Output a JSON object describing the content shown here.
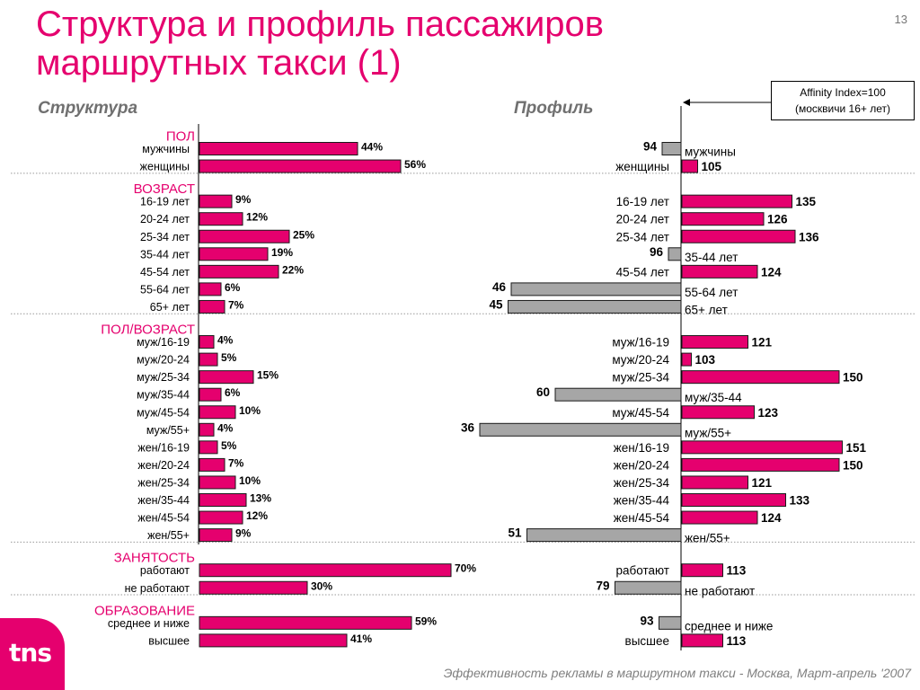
{
  "slide": {
    "title_line1": "Структура  и профиль пассажиров",
    "title_line2": "маршрутных такси (1)",
    "page_number": "13",
    "structure_heading": "Структура",
    "profile_heading": "Профиль",
    "affinity_line1": "Affinity Index=100",
    "affinity_line2": "(москвичи 16+ лет)",
    "footer": "Эффективность рекламы в маршрутном такси - Москва, Март-апрель '2007",
    "logo_text": "tns"
  },
  "colors": {
    "accent": "#e5006e",
    "bar_positive": "#e5006e",
    "bar_negative": "#a6a6a6",
    "title": "#e5006e",
    "muted": "#707070"
  },
  "chart_data": [
    {
      "type": "bar",
      "orientation": "horizontal",
      "name": "Структура",
      "unit": "%",
      "groups": [
        {
          "label": "ПОЛ",
          "items": [
            {
              "label": "мужчины",
              "value": 44
            },
            {
              "label": "женщины",
              "value": 56
            }
          ]
        },
        {
          "label": "ВОЗРАСТ",
          "items": [
            {
              "label": "16-19 лет",
              "value": 9
            },
            {
              "label": "20-24 лет",
              "value": 12
            },
            {
              "label": "25-34 лет",
              "value": 25
            },
            {
              "label": "35-44 лет",
              "value": 19
            },
            {
              "label": "45-54 лет",
              "value": 22
            },
            {
              "label": "55-64 лет",
              "value": 6
            },
            {
              "label": "65+ лет",
              "value": 7
            }
          ]
        },
        {
          "label": "ПОЛ/ВОЗРАСТ",
          "items": [
            {
              "label": "муж/16-19",
              "value": 4
            },
            {
              "label": "муж/20-24",
              "value": 5
            },
            {
              "label": "муж/25-34",
              "value": 15
            },
            {
              "label": "муж/35-44",
              "value": 6
            },
            {
              "label": "муж/45-54",
              "value": 10
            },
            {
              "label": "муж/55+",
              "value": 4
            },
            {
              "label": "жен/16-19",
              "value": 5
            },
            {
              "label": "жен/20-24",
              "value": 7
            },
            {
              "label": "жен/25-34",
              "value": 10
            },
            {
              "label": "жен/35-44",
              "value": 13
            },
            {
              "label": "жен/45-54",
              "value": 12
            },
            {
              "label": "жен/55+",
              "value": 9
            }
          ]
        },
        {
          "label": "ЗАНЯТОСТЬ",
          "items": [
            {
              "label": "работают",
              "value": 70
            },
            {
              "label": "не работают",
              "value": 30
            }
          ]
        },
        {
          "label": "ОБРАЗОВАНИЕ",
          "items": [
            {
              "label": "среднее и ниже",
              "value": 59
            },
            {
              "label": "высшее",
              "value": 41
            }
          ]
        }
      ]
    },
    {
      "type": "bar",
      "orientation": "horizontal-diverging",
      "name": "Профиль",
      "baseline": 100,
      "groups": [
        {
          "items": [
            {
              "label": "мужчины",
              "value": 94
            },
            {
              "label": "женщины",
              "value": 105
            }
          ]
        },
        {
          "items": [
            {
              "label": "16-19 лет",
              "value": 135
            },
            {
              "label": "20-24 лет",
              "value": 126
            },
            {
              "label": "25-34 лет",
              "value": 136
            },
            {
              "label": "35-44 лет",
              "value": 96
            },
            {
              "label": "45-54 лет",
              "value": 124
            },
            {
              "label": "55-64 лет",
              "value": 46
            },
            {
              "label": "65+ лет",
              "value": 45
            }
          ]
        },
        {
          "items": [
            {
              "label": "муж/16-19",
              "value": 121
            },
            {
              "label": "муж/20-24",
              "value": 103
            },
            {
              "label": "муж/25-34",
              "value": 150
            },
            {
              "label": "муж/35-44",
              "value": 60
            },
            {
              "label": "муж/45-54",
              "value": 123
            },
            {
              "label": "муж/55+",
              "value": 36
            },
            {
              "label": "жен/16-19",
              "value": 151
            },
            {
              "label": "жен/20-24",
              "value": 150
            },
            {
              "label": "жен/25-34",
              "value": 121
            },
            {
              "label": "жен/35-44",
              "value": 133
            },
            {
              "label": "жен/45-54",
              "value": 124
            },
            {
              "label": "жен/55+",
              "value": 51
            }
          ]
        },
        {
          "items": [
            {
              "label": "работают",
              "value": 113
            },
            {
              "label": "не работают",
              "value": 79
            }
          ]
        },
        {
          "items": [
            {
              "label": "среднее и ниже",
              "value": 93
            },
            {
              "label": "высшее",
              "value": 113
            }
          ]
        }
      ]
    }
  ]
}
